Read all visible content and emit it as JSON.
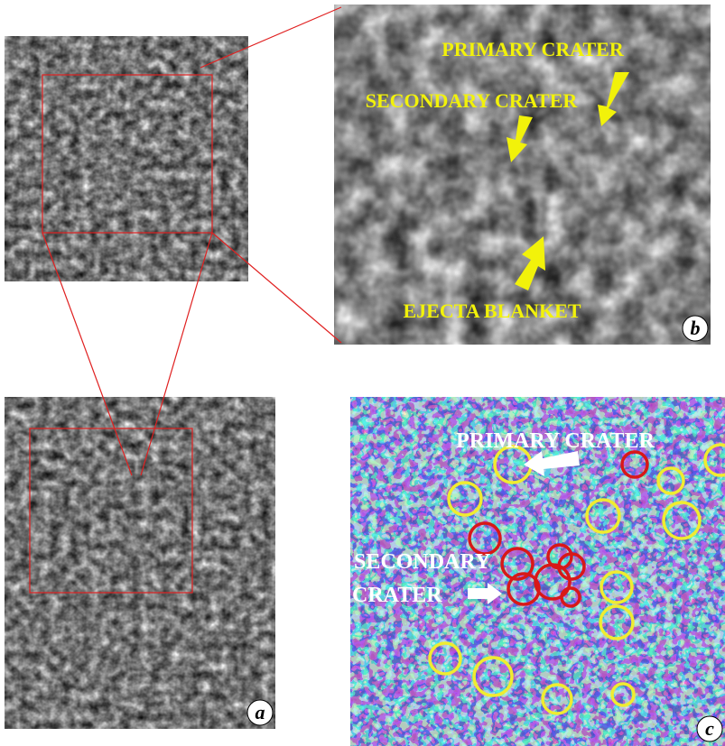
{
  "panels": [
    {
      "label": "a"
    },
    {
      "label": "b",
      "annotations": [
        "PRIMARY CRATER",
        "SECONDARY CRATER",
        "EJECTA BLANKET"
      ]
    },
    {
      "label": "c",
      "annotations": [
        "PRIMARY CRATER",
        "SECONDARY",
        "CRATER"
      ]
    }
  ]
}
